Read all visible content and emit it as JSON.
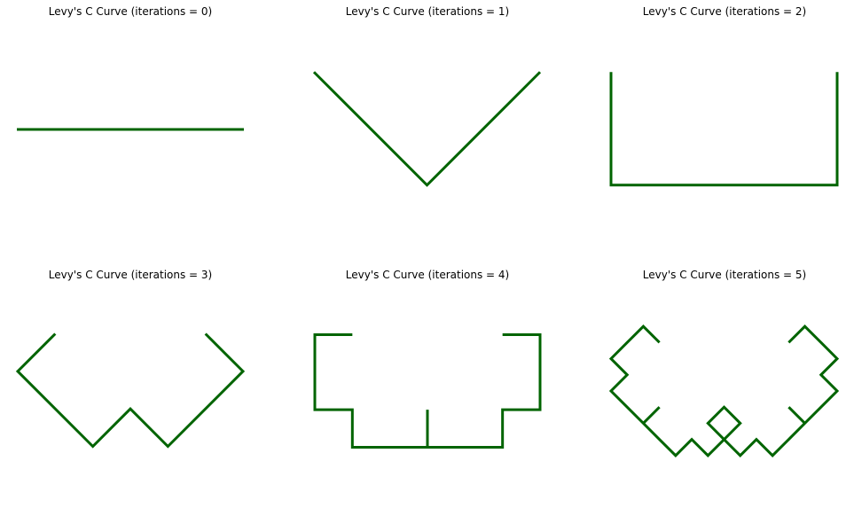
{
  "figure": {
    "line_color": "#006400",
    "panels": [
      {
        "title": "Levy's C Curve (iterations = 0)",
        "iterations": 0
      },
      {
        "title": "Levy's C Curve (iterations = 1)",
        "iterations": 1
      },
      {
        "title": "Levy's C Curve (iterations = 2)",
        "iterations": 2
      },
      {
        "title": "Levy's C Curve (iterations = 3)",
        "iterations": 3
      },
      {
        "title": "Levy's C Curve (iterations = 4)",
        "iterations": 4
      },
      {
        "title": "Levy's C Curve (iterations = 5)",
        "iterations": 5
      }
    ]
  }
}
